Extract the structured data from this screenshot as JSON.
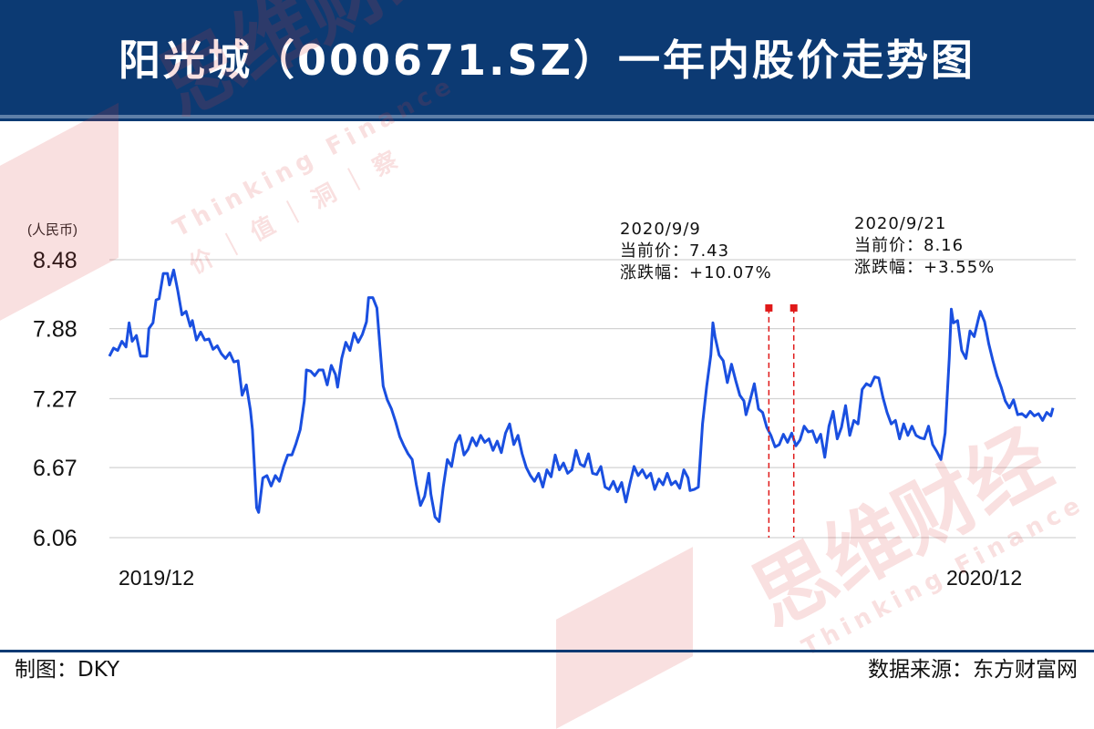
{
  "title": "阳光城（000671.SZ）一年内股价走势图",
  "unit_label": "(人民币)",
  "footer": {
    "maker": "制图：DKY",
    "source": "数据来源：东方财富网"
  },
  "watermark": {
    "brand": "思维财经",
    "slogan": "Thinking Finance",
    "tagline": "价｜值｜洞｜察"
  },
  "colors": {
    "header_bg": "#0c3a73",
    "line": "#1a4fe0",
    "marker": "#e01919",
    "grid": "#d3d3d3"
  },
  "annotations": [
    {
      "date": "2020/9/9",
      "price_label": "当前价：7.43",
      "change_label": "涨跌幅：+10.07%"
    },
    {
      "date": "2020/9/21",
      "price_label": "当前价：8.16",
      "change_label": "涨跌幅：+3.55%"
    }
  ],
  "chart_data": {
    "type": "line",
    "y_ticks": [
      "8.48",
      "7.88",
      "7.27",
      "6.67",
      "6.06"
    ],
    "ylim": [
      6.06,
      8.48
    ],
    "x_labels": [
      "2019/12",
      "2020/12"
    ],
    "grid": true,
    "markers": [
      {
        "x": 0.6989,
        "y": 8.06
      },
      {
        "x": 0.7253,
        "y": 8.06
      }
    ],
    "series": [
      {
        "values": [
          [
            0.0,
            7.64
          ],
          [
            0.0044,
            7.71
          ],
          [
            0.0088,
            7.69
          ],
          [
            0.0132,
            7.77
          ],
          [
            0.0176,
            7.72
          ],
          [
            0.0209,
            7.93
          ],
          [
            0.0242,
            7.77
          ],
          [
            0.0286,
            7.82
          ],
          [
            0.033,
            7.64
          ],
          [
            0.0396,
            7.64
          ],
          [
            0.0418,
            7.88
          ],
          [
            0.0462,
            7.93
          ],
          [
            0.0495,
            8.13
          ],
          [
            0.0527,
            8.14
          ],
          [
            0.0571,
            8.36
          ],
          [
            0.0615,
            8.36
          ],
          [
            0.0637,
            8.26
          ],
          [
            0.0681,
            8.39
          ],
          [
            0.0725,
            8.21
          ],
          [
            0.0769,
            8.0
          ],
          [
            0.0813,
            8.03
          ],
          [
            0.0857,
            7.9
          ],
          [
            0.0879,
            7.95
          ],
          [
            0.0923,
            7.78
          ],
          [
            0.0967,
            7.85
          ],
          [
            0.1011,
            7.78
          ],
          [
            0.1055,
            7.79
          ],
          [
            0.1099,
            7.7
          ],
          [
            0.1143,
            7.73
          ],
          [
            0.1187,
            7.66
          ],
          [
            0.1231,
            7.62
          ],
          [
            0.1275,
            7.67
          ],
          [
            0.1319,
            7.59
          ],
          [
            0.1363,
            7.6
          ],
          [
            0.1407,
            7.3
          ],
          [
            0.1451,
            7.39
          ],
          [
            0.1495,
            7.17
          ],
          [
            0.1516,
            7.0
          ],
          [
            0.156,
            6.32
          ],
          [
            0.1582,
            6.28
          ],
          [
            0.1626,
            6.58
          ],
          [
            0.167,
            6.6
          ],
          [
            0.1714,
            6.51
          ],
          [
            0.1758,
            6.6
          ],
          [
            0.1802,
            6.55
          ],
          [
            0.1846,
            6.68
          ],
          [
            0.189,
            6.78
          ],
          [
            0.1934,
            6.78
          ],
          [
            0.1978,
            6.88
          ],
          [
            0.2022,
            7.0
          ],
          [
            0.2066,
            7.25
          ],
          [
            0.2088,
            7.52
          ],
          [
            0.2132,
            7.51
          ],
          [
            0.2176,
            7.47
          ],
          [
            0.222,
            7.52
          ],
          [
            0.2264,
            7.52
          ],
          [
            0.2308,
            7.39
          ],
          [
            0.2352,
            7.56
          ],
          [
            0.2396,
            7.48
          ],
          [
            0.2418,
            7.37
          ],
          [
            0.2462,
            7.62
          ],
          [
            0.2505,
            7.76
          ],
          [
            0.2549,
            7.69
          ],
          [
            0.2593,
            7.84
          ],
          [
            0.2637,
            7.76
          ],
          [
            0.2681,
            7.83
          ],
          [
            0.2725,
            7.94
          ],
          [
            0.2747,
            8.15
          ],
          [
            0.2791,
            8.15
          ],
          [
            0.2835,
            8.06
          ],
          [
            0.2879,
            7.6
          ],
          [
            0.2901,
            7.38
          ],
          [
            0.2945,
            7.26
          ],
          [
            0.2989,
            7.18
          ],
          [
            0.3033,
            7.07
          ],
          [
            0.3077,
            6.94
          ],
          [
            0.3121,
            6.86
          ],
          [
            0.3165,
            6.79
          ],
          [
            0.3209,
            6.74
          ],
          [
            0.3253,
            6.52
          ],
          [
            0.3297,
            6.34
          ],
          [
            0.3341,
            6.42
          ],
          [
            0.3385,
            6.62
          ],
          [
            0.3407,
            6.44
          ],
          [
            0.3451,
            6.24
          ],
          [
            0.3495,
            6.2
          ],
          [
            0.3538,
            6.5
          ],
          [
            0.3582,
            6.74
          ],
          [
            0.3626,
            6.68
          ],
          [
            0.367,
            6.88
          ],
          [
            0.3714,
            6.95
          ],
          [
            0.3758,
            6.78
          ],
          [
            0.3802,
            6.83
          ],
          [
            0.3846,
            6.93
          ],
          [
            0.389,
            6.86
          ],
          [
            0.3934,
            6.95
          ],
          [
            0.3978,
            6.89
          ],
          [
            0.4022,
            6.92
          ],
          [
            0.4066,
            6.82
          ],
          [
            0.411,
            6.9
          ],
          [
            0.4154,
            6.8
          ],
          [
            0.4198,
            6.97
          ],
          [
            0.4242,
            7.05
          ],
          [
            0.4286,
            6.87
          ],
          [
            0.433,
            6.95
          ],
          [
            0.4374,
            6.79
          ],
          [
            0.4418,
            6.67
          ],
          [
            0.4462,
            6.6
          ],
          [
            0.4505,
            6.55
          ],
          [
            0.4549,
            6.62
          ],
          [
            0.4593,
            6.5
          ],
          [
            0.4637,
            6.65
          ],
          [
            0.4681,
            6.59
          ],
          [
            0.4725,
            6.78
          ],
          [
            0.4769,
            6.65
          ],
          [
            0.4813,
            6.71
          ],
          [
            0.4857,
            6.62
          ],
          [
            0.4901,
            6.65
          ],
          [
            0.4945,
            6.82
          ],
          [
            0.4989,
            6.7
          ],
          [
            0.5033,
            6.68
          ],
          [
            0.5077,
            6.79
          ],
          [
            0.5121,
            6.62
          ],
          [
            0.5165,
            6.61
          ],
          [
            0.5209,
            6.68
          ],
          [
            0.5253,
            6.5
          ],
          [
            0.5297,
            6.48
          ],
          [
            0.5341,
            6.55
          ],
          [
            0.5385,
            6.46
          ],
          [
            0.5429,
            6.54
          ],
          [
            0.5473,
            6.37
          ],
          [
            0.5516,
            6.53
          ],
          [
            0.556,
            6.68
          ],
          [
            0.5604,
            6.6
          ],
          [
            0.5648,
            6.65
          ],
          [
            0.5692,
            6.58
          ],
          [
            0.5736,
            6.62
          ],
          [
            0.578,
            6.48
          ],
          [
            0.5824,
            6.57
          ],
          [
            0.5868,
            6.52
          ],
          [
            0.5912,
            6.62
          ],
          [
            0.5956,
            6.52
          ],
          [
            0.6,
            6.55
          ],
          [
            0.6044,
            6.49
          ],
          [
            0.6088,
            6.65
          ],
          [
            0.6132,
            6.58
          ],
          [
            0.6154,
            6.47
          ],
          [
            0.6198,
            6.48
          ],
          [
            0.6242,
            6.5
          ],
          [
            0.6286,
            7.05
          ],
          [
            0.633,
            7.38
          ],
          [
            0.6374,
            7.65
          ],
          [
            0.6396,
            7.93
          ],
          [
            0.6418,
            7.81
          ],
          [
            0.6462,
            7.65
          ],
          [
            0.6505,
            7.6
          ],
          [
            0.6549,
            7.41
          ],
          [
            0.6593,
            7.57
          ],
          [
            0.6637,
            7.43
          ],
          [
            0.6681,
            7.3
          ],
          [
            0.6725,
            7.25
          ],
          [
            0.6747,
            7.13
          ],
          [
            0.6791,
            7.26
          ],
          [
            0.6835,
            7.4
          ],
          [
            0.6879,
            7.18
          ],
          [
            0.6923,
            7.15
          ],
          [
            0.6967,
            7.02
          ],
          [
            0.7011,
            6.95
          ],
          [
            0.7055,
            6.85
          ],
          [
            0.7099,
            6.87
          ],
          [
            0.7143,
            6.96
          ],
          [
            0.7187,
            6.89
          ],
          [
            0.7231,
            6.97
          ],
          [
            0.7275,
            6.86
          ],
          [
            0.7319,
            6.91
          ],
          [
            0.7363,
            7.03
          ],
          [
            0.7407,
            6.98
          ],
          [
            0.7451,
            6.99
          ],
          [
            0.7495,
            6.89
          ],
          [
            0.7538,
            6.96
          ],
          [
            0.7582,
            6.76
          ],
          [
            0.7626,
            7.03
          ],
          [
            0.767,
            7.16
          ],
          [
            0.7714,
            6.92
          ],
          [
            0.7758,
            7.02
          ],
          [
            0.7802,
            7.21
          ],
          [
            0.7846,
            6.95
          ],
          [
            0.789,
            7.08
          ],
          [
            0.7934,
            7.05
          ],
          [
            0.7978,
            7.35
          ],
          [
            0.8022,
            7.4
          ],
          [
            0.8066,
            7.38
          ],
          [
            0.811,
            7.46
          ],
          [
            0.8154,
            7.45
          ],
          [
            0.8198,
            7.28
          ],
          [
            0.8242,
            7.15
          ],
          [
            0.8286,
            7.05
          ],
          [
            0.833,
            7.08
          ],
          [
            0.8374,
            6.92
          ],
          [
            0.8418,
            7.05
          ],
          [
            0.8462,
            6.95
          ],
          [
            0.8505,
            7.03
          ],
          [
            0.8549,
            6.95
          ],
          [
            0.8593,
            6.93
          ],
          [
            0.8637,
            6.92
          ],
          [
            0.8681,
            7.03
          ],
          [
            0.8725,
            6.87
          ],
          [
            0.8769,
            6.81
          ],
          [
            0.8813,
            6.74
          ],
          [
            0.8857,
            6.97
          ],
          [
            0.8901,
            7.63
          ],
          [
            0.8923,
            8.05
          ],
          [
            0.8945,
            7.93
          ],
          [
            0.8989,
            7.95
          ],
          [
            0.9033,
            7.69
          ],
          [
            0.9077,
            7.62
          ],
          [
            0.9121,
            7.86
          ],
          [
            0.9165,
            7.81
          ],
          [
            0.9209,
            7.96
          ],
          [
            0.9231,
            8.03
          ],
          [
            0.9275,
            7.94
          ],
          [
            0.9319,
            7.75
          ],
          [
            0.9363,
            7.6
          ],
          [
            0.9407,
            7.47
          ],
          [
            0.9451,
            7.37
          ],
          [
            0.9495,
            7.25
          ],
          [
            0.9538,
            7.19
          ],
          [
            0.9582,
            7.26
          ],
          [
            0.9626,
            7.13
          ],
          [
            0.967,
            7.14
          ],
          [
            0.9714,
            7.11
          ],
          [
            0.9758,
            7.16
          ],
          [
            0.9802,
            7.12
          ],
          [
            0.9846,
            7.14
          ],
          [
            0.989,
            7.08
          ],
          [
            0.9934,
            7.15
          ],
          [
            0.9978,
            7.12
          ],
          [
            1.0,
            7.19
          ]
        ]
      }
    ]
  }
}
